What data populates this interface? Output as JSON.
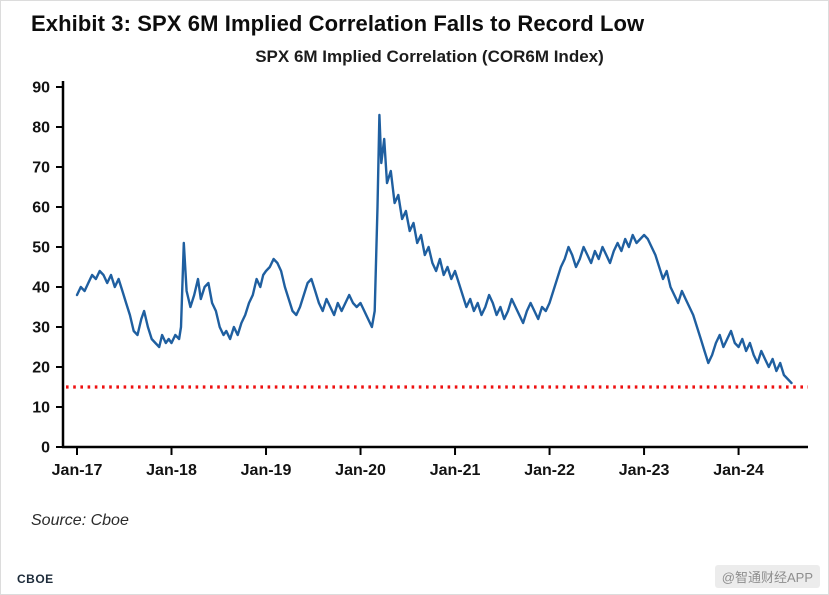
{
  "exhibit_title": "Exhibit 3: SPX 6M Implied Correlation Falls to Record Low",
  "source_note": "Source: Cboe",
  "footer": {
    "brand": "CBOE",
    "watermark": "@智通财经APP"
  },
  "colors": {
    "series_blue": "#1f5fa0",
    "reference_red": "#ee1111",
    "axis_black": "#000000"
  },
  "chart_data": {
    "type": "line",
    "title": "SPX 6M Implied Correlation (COR6M Index)",
    "xlabel": "",
    "ylabel": "",
    "ylim": [
      0,
      90
    ],
    "xlim_years": [
      0,
      7.65
    ],
    "grid": false,
    "legend": "none",
    "x_tick_labels": [
      "Jan-17",
      "Jan-18",
      "Jan-19",
      "Jan-20",
      "Jan-21",
      "Jan-22",
      "Jan-23",
      "Jan-24"
    ],
    "y_ticks": [
      0,
      10,
      20,
      30,
      40,
      50,
      60,
      70,
      80,
      90
    ],
    "reference_line": {
      "value": 15,
      "color": "#ee1111",
      "style": "dotted",
      "meaning": "record low level"
    },
    "series": [
      {
        "name": "SPX 6M Implied Correlation (COR6M Index)",
        "color": "#1f5fa0",
        "x_unit": "years since Jan-2017",
        "points": [
          [
            0.0,
            38
          ],
          [
            0.04,
            40
          ],
          [
            0.08,
            39
          ],
          [
            0.12,
            41
          ],
          [
            0.16,
            43
          ],
          [
            0.2,
            42
          ],
          [
            0.24,
            44
          ],
          [
            0.28,
            43
          ],
          [
            0.32,
            41
          ],
          [
            0.36,
            43
          ],
          [
            0.4,
            40
          ],
          [
            0.44,
            42
          ],
          [
            0.48,
            39
          ],
          [
            0.52,
            36
          ],
          [
            0.56,
            33
          ],
          [
            0.6,
            29
          ],
          [
            0.64,
            28
          ],
          [
            0.68,
            32
          ],
          [
            0.71,
            34
          ],
          [
            0.75,
            30
          ],
          [
            0.79,
            27
          ],
          [
            0.83,
            26
          ],
          [
            0.87,
            25
          ],
          [
            0.9,
            28
          ],
          [
            0.94,
            26
          ],
          [
            0.97,
            27
          ],
          [
            1.0,
            26
          ],
          [
            1.04,
            28
          ],
          [
            1.08,
            27
          ],
          [
            1.1,
            30
          ],
          [
            1.13,
            51
          ],
          [
            1.16,
            39
          ],
          [
            1.2,
            35
          ],
          [
            1.24,
            38
          ],
          [
            1.28,
            42
          ],
          [
            1.31,
            37
          ],
          [
            1.35,
            40
          ],
          [
            1.39,
            41
          ],
          [
            1.43,
            36
          ],
          [
            1.47,
            34
          ],
          [
            1.51,
            30
          ],
          [
            1.55,
            28
          ],
          [
            1.58,
            29
          ],
          [
            1.62,
            27
          ],
          [
            1.66,
            30
          ],
          [
            1.7,
            28
          ],
          [
            1.74,
            31
          ],
          [
            1.78,
            33
          ],
          [
            1.82,
            36
          ],
          [
            1.86,
            38
          ],
          [
            1.9,
            42
          ],
          [
            1.94,
            40
          ],
          [
            1.97,
            43
          ],
          [
            2.0,
            44
          ],
          [
            2.04,
            45
          ],
          [
            2.08,
            47
          ],
          [
            2.12,
            46
          ],
          [
            2.16,
            44
          ],
          [
            2.2,
            40
          ],
          [
            2.24,
            37
          ],
          [
            2.28,
            34
          ],
          [
            2.32,
            33
          ],
          [
            2.36,
            35
          ],
          [
            2.4,
            38
          ],
          [
            2.44,
            41
          ],
          [
            2.48,
            42
          ],
          [
            2.52,
            39
          ],
          [
            2.56,
            36
          ],
          [
            2.6,
            34
          ],
          [
            2.64,
            37
          ],
          [
            2.68,
            35
          ],
          [
            2.72,
            33
          ],
          [
            2.76,
            36
          ],
          [
            2.8,
            34
          ],
          [
            2.84,
            36
          ],
          [
            2.88,
            38
          ],
          [
            2.92,
            36
          ],
          [
            2.96,
            35
          ],
          [
            3.0,
            36
          ],
          [
            3.04,
            34
          ],
          [
            3.08,
            32
          ],
          [
            3.12,
            30
          ],
          [
            3.15,
            34
          ],
          [
            3.18,
            60
          ],
          [
            3.2,
            83
          ],
          [
            3.22,
            71
          ],
          [
            3.25,
            77
          ],
          [
            3.28,
            66
          ],
          [
            3.32,
            69
          ],
          [
            3.36,
            61
          ],
          [
            3.4,
            63
          ],
          [
            3.44,
            57
          ],
          [
            3.48,
            59
          ],
          [
            3.52,
            54
          ],
          [
            3.56,
            56
          ],
          [
            3.6,
            51
          ],
          [
            3.64,
            53
          ],
          [
            3.68,
            48
          ],
          [
            3.72,
            50
          ],
          [
            3.76,
            46
          ],
          [
            3.8,
            44
          ],
          [
            3.84,
            47
          ],
          [
            3.88,
            43
          ],
          [
            3.92,
            45
          ],
          [
            3.96,
            42
          ],
          [
            4.0,
            44
          ],
          [
            4.04,
            41
          ],
          [
            4.08,
            38
          ],
          [
            4.12,
            35
          ],
          [
            4.16,
            37
          ],
          [
            4.2,
            34
          ],
          [
            4.24,
            36
          ],
          [
            4.28,
            33
          ],
          [
            4.32,
            35
          ],
          [
            4.36,
            38
          ],
          [
            4.4,
            36
          ],
          [
            4.44,
            33
          ],
          [
            4.48,
            35
          ],
          [
            4.52,
            32
          ],
          [
            4.56,
            34
          ],
          [
            4.6,
            37
          ],
          [
            4.64,
            35
          ],
          [
            4.68,
            33
          ],
          [
            4.72,
            31
          ],
          [
            4.76,
            34
          ],
          [
            4.8,
            36
          ],
          [
            4.84,
            34
          ],
          [
            4.88,
            32
          ],
          [
            4.92,
            35
          ],
          [
            4.96,
            34
          ],
          [
            5.0,
            36
          ],
          [
            5.04,
            39
          ],
          [
            5.08,
            42
          ],
          [
            5.12,
            45
          ],
          [
            5.16,
            47
          ],
          [
            5.2,
            50
          ],
          [
            5.24,
            48
          ],
          [
            5.28,
            45
          ],
          [
            5.32,
            47
          ],
          [
            5.36,
            50
          ],
          [
            5.4,
            48
          ],
          [
            5.44,
            46
          ],
          [
            5.48,
            49
          ],
          [
            5.52,
            47
          ],
          [
            5.56,
            50
          ],
          [
            5.6,
            48
          ],
          [
            5.64,
            46
          ],
          [
            5.68,
            49
          ],
          [
            5.72,
            51
          ],
          [
            5.76,
            49
          ],
          [
            5.8,
            52
          ],
          [
            5.84,
            50
          ],
          [
            5.88,
            53
          ],
          [
            5.92,
            51
          ],
          [
            5.96,
            52
          ],
          [
            6.0,
            53
          ],
          [
            6.04,
            52
          ],
          [
            6.08,
            50
          ],
          [
            6.12,
            48
          ],
          [
            6.16,
            45
          ],
          [
            6.2,
            42
          ],
          [
            6.24,
            44
          ],
          [
            6.28,
            40
          ],
          [
            6.32,
            38
          ],
          [
            6.36,
            36
          ],
          [
            6.4,
            39
          ],
          [
            6.44,
            37
          ],
          [
            6.48,
            35
          ],
          [
            6.52,
            33
          ],
          [
            6.56,
            30
          ],
          [
            6.6,
            27
          ],
          [
            6.64,
            24
          ],
          [
            6.68,
            21
          ],
          [
            6.72,
            23
          ],
          [
            6.76,
            26
          ],
          [
            6.8,
            28
          ],
          [
            6.84,
            25
          ],
          [
            6.88,
            27
          ],
          [
            6.92,
            29
          ],
          [
            6.96,
            26
          ],
          [
            7.0,
            25
          ],
          [
            7.04,
            27
          ],
          [
            7.08,
            24
          ],
          [
            7.12,
            26
          ],
          [
            7.16,
            23
          ],
          [
            7.2,
            21
          ],
          [
            7.24,
            24
          ],
          [
            7.28,
            22
          ],
          [
            7.32,
            20
          ],
          [
            7.36,
            22
          ],
          [
            7.4,
            19
          ],
          [
            7.44,
            21
          ],
          [
            7.48,
            18
          ],
          [
            7.52,
            17
          ],
          [
            7.56,
            16
          ]
        ]
      }
    ]
  }
}
